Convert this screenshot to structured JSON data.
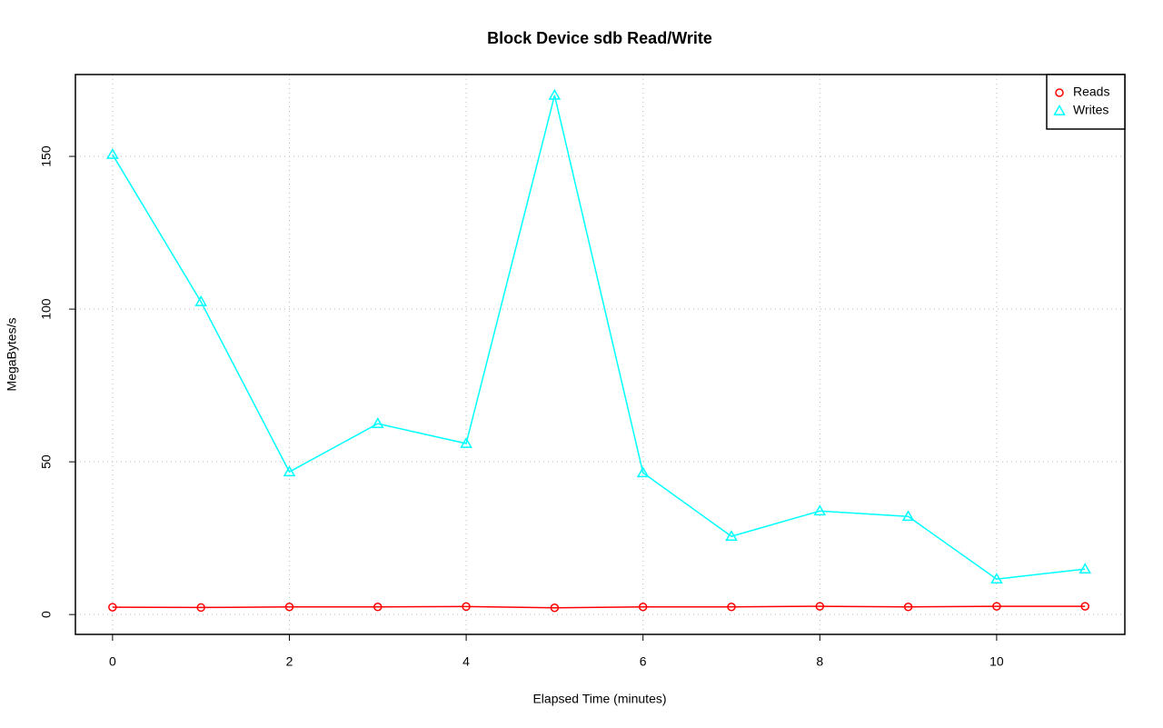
{
  "chart_data": {
    "type": "line",
    "title": "Block Device sdb Read/Write",
    "x_label": "Elapsed Time (minutes)",
    "y_label": "MegaBytes/s",
    "x": [
      0,
      1,
      2,
      3,
      4,
      5,
      6,
      7,
      8,
      9,
      10,
      11
    ],
    "series": [
      {
        "name": "Reads",
        "color": "#ff0000",
        "marker": "circle",
        "values": [
          2.4,
          2.3,
          2.5,
          2.5,
          2.6,
          2.2,
          2.5,
          2.5,
          2.7,
          2.5,
          2.7,
          2.7
        ]
      },
      {
        "name": "Writes",
        "color": "#00ffff",
        "marker": "triangle",
        "values": [
          150.6,
          102.4,
          46.7,
          62.5,
          56,
          170,
          46.4,
          25.6,
          33.9,
          32.1,
          11.6,
          14.9
        ]
      }
    ],
    "xlim": [
      -0.42,
      11.45
    ],
    "xticks": [
      0,
      2,
      4,
      6,
      8,
      10
    ],
    "ylim": [
      -6.5,
      176.8
    ],
    "yticks": [
      0,
      50,
      100,
      150
    ],
    "grid": true,
    "legend": "topright"
  }
}
